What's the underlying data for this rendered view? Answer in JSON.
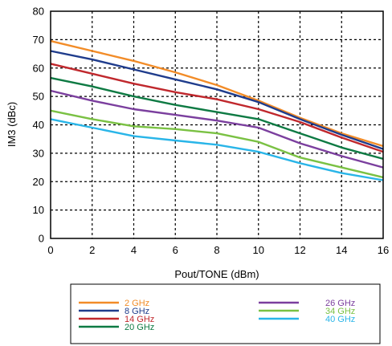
{
  "chart_data": {
    "type": "line",
    "xlabel": "Pout/TONE (dBm)",
    "ylabel": "IM3 (dBc)",
    "xlim": [
      0,
      16
    ],
    "ylim": [
      0,
      80
    ],
    "x_ticks": [
      0,
      2,
      4,
      6,
      8,
      10,
      12,
      14,
      16
    ],
    "y_ticks": [
      0,
      10,
      20,
      30,
      40,
      50,
      60,
      70,
      80
    ],
    "grid": true,
    "legend_position": "bottom",
    "series": [
      {
        "name": "2 GHz",
        "color": "#f28c28",
        "x": [
          0,
          2,
          4,
          6,
          8,
          10,
          12,
          14,
          16
        ],
        "y": [
          69.5,
          66,
          62.5,
          58.5,
          54,
          48.5,
          42.5,
          37,
          32.5
        ]
      },
      {
        "name": "8 GHz",
        "color": "#1f3c8c",
        "x": [
          0,
          2,
          4,
          6,
          8,
          10,
          12,
          14,
          16
        ],
        "y": [
          66,
          63,
          59.5,
          56,
          52.5,
          48,
          42,
          36.5,
          31.5
        ]
      },
      {
        "name": "14 GHz",
        "color": "#c0282d",
        "x": [
          0,
          2,
          4,
          6,
          8,
          10,
          12,
          14,
          16
        ],
        "y": [
          61.5,
          58,
          54.5,
          51.5,
          49,
          45.5,
          41,
          35.5,
          30.5
        ]
      },
      {
        "name": "20 GHz",
        "color": "#0e7a43",
        "x": [
          0,
          2,
          4,
          6,
          8,
          10,
          12,
          14,
          16
        ],
        "y": [
          56.5,
          53.5,
          50,
          47,
          44.5,
          42,
          37,
          32,
          28
        ]
      },
      {
        "name": "26 GHz",
        "color": "#7b3f9e",
        "x": [
          0,
          2,
          4,
          6,
          8,
          10,
          12,
          14,
          16
        ],
        "y": [
          52,
          48.5,
          45.5,
          43.5,
          41.5,
          39,
          33.5,
          29,
          25
        ]
      },
      {
        "name": "34 GHz",
        "color": "#7ac143",
        "x": [
          0,
          2,
          4,
          6,
          8,
          10,
          12,
          14,
          16
        ],
        "y": [
          45,
          42,
          39.5,
          38.5,
          37,
          34,
          28.5,
          25,
          21.5
        ]
      },
      {
        "name": "40 GHz",
        "color": "#29b5e8",
        "x": [
          0,
          2,
          4,
          6,
          8,
          10,
          12,
          14,
          16
        ],
        "y": [
          42,
          39,
          36,
          34.5,
          33,
          30.5,
          26.5,
          23,
          20.5
        ]
      }
    ]
  }
}
